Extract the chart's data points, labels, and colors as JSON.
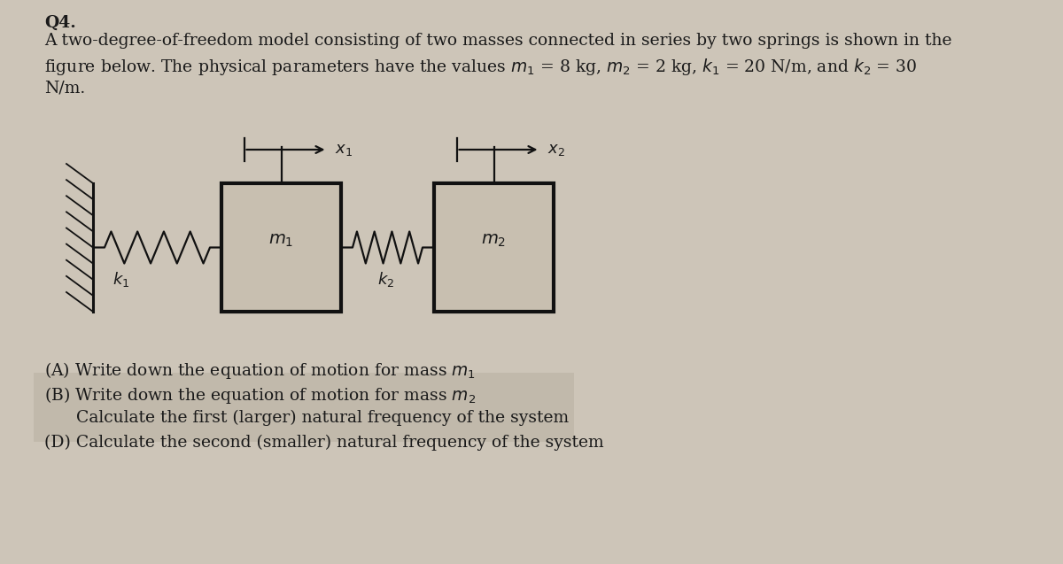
{
  "background_color": "#cdc5b8",
  "title_text": "Q4.",
  "desc_line1": "A two-degree-of-freedom model consisting of two masses connected in series by two springs is shown in the",
  "desc_line2": "figure below. The physical parameters have the values $m_1$ = 8 kg, $m_2$ = 2 kg, $k_1$ = 20 N/m, and $k_2$ = 30",
  "desc_line3": "N/m.",
  "q1": "(A) Write down the equation of motion for mass $m_1$",
  "q2": "(B) Write down the equation of motion for mass $m_2$",
  "q3": "      Calculate the first (larger) natural frequency of the system",
  "q4": "(D) Calculate the second (smaller) natural frequency of the system",
  "text_color": "#1a1a1a",
  "box_facecolor": "#c8bfb0",
  "box_edgecolor": "#111111",
  "spring_color": "#111111",
  "wall_color": "#111111",
  "arrow_color": "#111111",
  "highlight_color": "#b5ac9e"
}
